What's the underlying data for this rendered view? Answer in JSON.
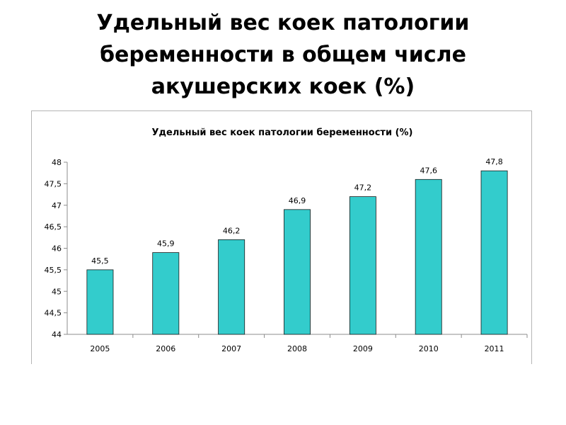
{
  "slide": {
    "title_lines": [
      "Удельный вес коек патологии",
      "беременности в общем числе",
      "акушерских коек (%)"
    ]
  },
  "chart_data": {
    "type": "bar",
    "title": "Удельный вес коек патологии беременности (%)",
    "categories": [
      "2005",
      "2006",
      "2007",
      "2008",
      "2009",
      "2010",
      "2011"
    ],
    "values": [
      45.5,
      45.9,
      46.2,
      46.9,
      47.2,
      47.6,
      47.8
    ],
    "value_labels": [
      "45,5",
      "45,9",
      "46,2",
      "46,9",
      "47,2",
      "47,6",
      "47,8"
    ],
    "y_ticks": [
      44,
      44.5,
      45,
      45.5,
      46,
      46.5,
      47,
      47.5,
      48
    ],
    "y_tick_labels": [
      "44",
      "44,5",
      "45",
      "45,5",
      "46",
      "46,5",
      "47",
      "47,5",
      "48"
    ],
    "xlabel": "",
    "ylabel": "",
    "ylim": [
      44,
      48
    ],
    "grid": false,
    "legend": "none",
    "bar_color": "#33cccc",
    "bar_edge_color": "#1a1a1a"
  }
}
